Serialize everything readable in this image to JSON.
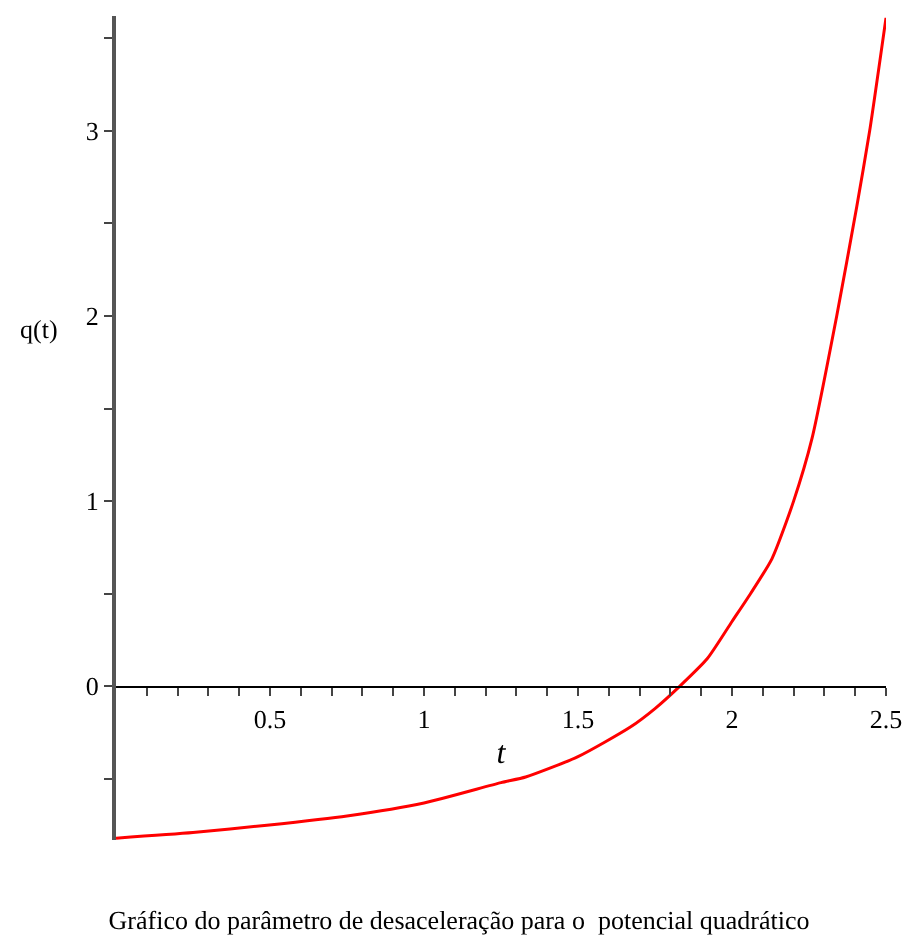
{
  "chart_data": {
    "type": "line",
    "title": "Gráfico do parâmetro de desaceleração para o  potencial quadrático",
    "xlabel": "t",
    "ylabel": "q(t)",
    "x": [
      0,
      0.25,
      0.49,
      0.75,
      1.0,
      1.25,
      1.33,
      1.5,
      1.67,
      1.75,
      1.83,
      1.92,
      2.0,
      2.06,
      2.13,
      2.2,
      2.26,
      2.34,
      2.405,
      2.447,
      2.5
    ],
    "series": [
      {
        "color": "#ff0000",
        "values": [
          -0.82,
          -0.79,
          -0.75,
          -0.7,
          -0.63,
          -0.52,
          -0.49,
          -0.38,
          -0.22,
          -0.12,
          0,
          0.15,
          0.35,
          0.5,
          0.69,
          1.0,
          1.34,
          2.0,
          2.59,
          3.0,
          3.61
        ]
      }
    ],
    "xlim": [
      0,
      2.5
    ],
    "ylim": [
      -0.83,
      3.62
    ],
    "xticks": [
      {
        "value": 0.1,
        "label": null
      },
      {
        "value": 0.2,
        "label": null
      },
      {
        "value": 0.3,
        "label": null
      },
      {
        "value": 0.4,
        "label": null
      },
      0.5,
      {
        "value": 0.6,
        "label": null
      },
      {
        "value": 0.7,
        "label": null
      },
      {
        "value": 0.8,
        "label": null
      },
      {
        "value": 0.9,
        "label": null
      },
      1,
      {
        "value": 1.1,
        "label": null
      },
      {
        "value": 1.2,
        "label": null
      },
      {
        "value": 1.3,
        "label": null
      },
      {
        "value": 1.4,
        "label": null
      },
      1.5,
      {
        "value": 1.6,
        "label": null
      },
      {
        "value": 1.7,
        "label": null
      },
      {
        "value": 1.8,
        "label": null
      },
      {
        "value": 1.9,
        "label": null
      },
      2,
      {
        "value": 2.1,
        "label": null
      },
      {
        "value": 2.2,
        "label": null
      },
      {
        "value": 2.3,
        "label": null
      },
      {
        "value": 2.4,
        "label": null
      },
      2.5
    ],
    "yticks": [
      {
        "value": -0.5,
        "label": null
      },
      0,
      {
        "value": 0.5,
        "label": null
      },
      1,
      {
        "value": 1.5,
        "label": null
      },
      2,
      {
        "value": 2.5,
        "label": null
      },
      3,
      {
        "value": 3.5,
        "label": null
      }
    ],
    "legend": false,
    "marker": "none",
    "line_style": "solid"
  }
}
